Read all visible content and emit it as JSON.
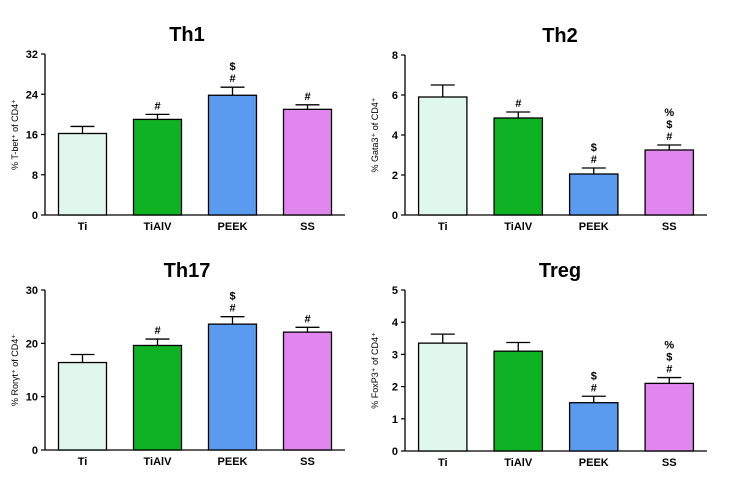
{
  "chart_data": [
    {
      "type": "bar",
      "title": "Th1",
      "ylabel": "% T-bet⁺ of CD4⁺",
      "categories": [
        "Ti",
        "TiAlV",
        "PEEK",
        "SS"
      ],
      "values": [
        16.2,
        19.0,
        23.8,
        21.0
      ],
      "errors": [
        1.4,
        1.0,
        1.6,
        0.9
      ],
      "annotations": [
        [],
        [
          "#"
        ],
        [
          "$",
          "#"
        ],
        [
          "#"
        ]
      ],
      "colors": [
        "#e0f7ee",
        "#0fb223",
        "#5a9bef",
        "#e286ef"
      ],
      "ylim": [
        0,
        32
      ],
      "yticks": [
        "0",
        "8",
        "16",
        "24",
        "32"
      ]
    },
    {
      "type": "bar",
      "title": "Th2",
      "ylabel": "% Gata3⁺ of CD4⁺",
      "categories": [
        "Ti",
        "TiAlV",
        "PEEK",
        "SS"
      ],
      "values": [
        5.9,
        4.85,
        2.05,
        3.25
      ],
      "errors": [
        0.6,
        0.3,
        0.3,
        0.25
      ],
      "annotations": [
        [],
        [
          "#"
        ],
        [
          "$",
          "#"
        ],
        [
          "%",
          "$",
          "#"
        ]
      ],
      "colors": [
        "#e0f7ee",
        "#0fb223",
        "#5a9bef",
        "#e286ef"
      ],
      "ylim": [
        0,
        8
      ],
      "yticks": [
        "0",
        "2",
        "4",
        "6",
        "8"
      ]
    },
    {
      "type": "bar",
      "title": "Th17",
      "ylabel": "% Rorγt⁺ of CD4⁺",
      "categories": [
        "Ti",
        "TiAlV",
        "PEEK",
        "SS"
      ],
      "values": [
        16.4,
        19.6,
        23.6,
        22.1
      ],
      "errors": [
        1.5,
        1.2,
        1.4,
        0.9
      ],
      "annotations": [
        [],
        [
          "#"
        ],
        [
          "$",
          "#"
        ],
        [
          "#"
        ]
      ],
      "colors": [
        "#e0f7ee",
        "#0fb223",
        "#5a9bef",
        "#e286ef"
      ],
      "ylim": [
        0,
        30
      ],
      "yticks": [
        "0",
        "10",
        "20",
        "30"
      ]
    },
    {
      "type": "bar",
      "title": "Treg",
      "ylabel": "% FoxP3⁺ of CD4⁺",
      "categories": [
        "Ti",
        "TiAlV",
        "PEEK",
        "SS"
      ],
      "values": [
        3.35,
        3.1,
        1.5,
        2.1
      ],
      "errors": [
        0.28,
        0.27,
        0.2,
        0.18
      ],
      "annotations": [
        [],
        [],
        [
          "$",
          "#"
        ],
        [
          "%",
          "$",
          "#"
        ]
      ],
      "colors": [
        "#e0f7ee",
        "#0fb223",
        "#5a9bef",
        "#e286ef"
      ],
      "ylim": [
        0,
        5
      ],
      "yticks": [
        "0",
        "1",
        "2",
        "3",
        "4",
        "5"
      ]
    }
  ]
}
